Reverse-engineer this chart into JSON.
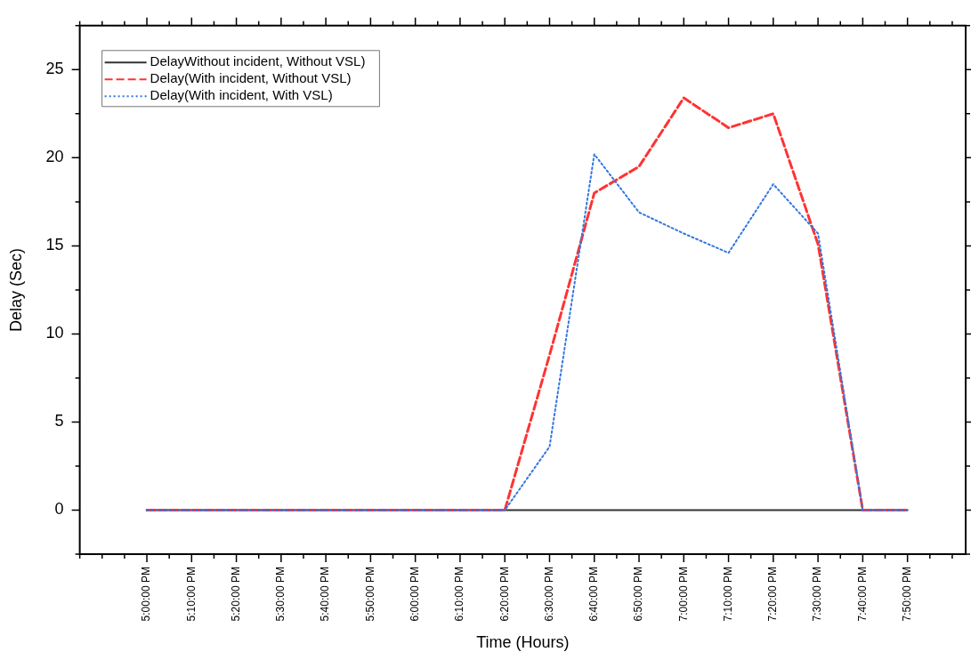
{
  "chart_data": {
    "type": "line",
    "xlabel": "Time (Hours)",
    "ylabel": "Delay (Sec)",
    "categories": [
      "5:00:00 PM",
      "5:10:00 PM",
      "5:20:00 PM",
      "5:30:00 PM",
      "5:40:00 PM",
      "5:50:00 PM",
      "6:00:00 PM",
      "6:10:00 PM",
      "6:20:00 PM",
      "6:30:00 PM",
      "6:40:00 PM",
      "6:50:00 PM",
      "7:00:00 PM",
      "7:10:00 PM",
      "7:20:00 PM",
      "7:30:00 PM",
      "7:40:00 PM",
      "7:50:00 PM"
    ],
    "series": [
      {
        "name": "DelayWithout incident, Without VSL)",
        "color": "#333333",
        "line_style": "solid",
        "values": [
          0,
          0,
          0,
          0,
          0,
          0,
          0,
          0,
          0,
          0,
          0,
          0,
          0,
          0,
          0,
          0,
          0,
          0
        ]
      },
      {
        "name": "Delay(With incident, Without VSL)",
        "color": "#ff3333",
        "line_style": "dashed",
        "values": [
          0,
          0,
          0,
          0,
          0,
          0,
          0,
          0,
          0,
          8.8,
          18,
          19.5,
          23.4,
          21.7,
          22.5,
          15.1,
          0,
          0
        ]
      },
      {
        "name": "Delay(With incident, With VSL)",
        "color": "#3377dd",
        "line_style": "dotted",
        "values": [
          0,
          0,
          0,
          0,
          0,
          0,
          0,
          0,
          0,
          3.6,
          20.2,
          16.9,
          15.7,
          14.6,
          18.5,
          15.7,
          0,
          0
        ]
      }
    ],
    "ylim": [
      -2.5,
      27.5
    ],
    "yticks": [
      0,
      5,
      10,
      15,
      20,
      25
    ],
    "grid": false,
    "legend": "top left",
    "marker": "none"
  }
}
